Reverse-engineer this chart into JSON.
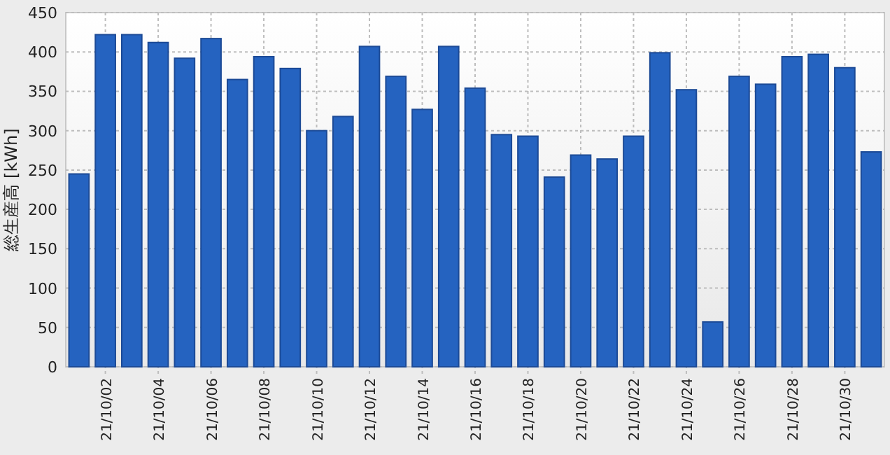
{
  "chart_data": {
    "type": "bar",
    "ylabel": "総生産高 [kWh]",
    "categories": [
      null,
      "21/10/02",
      null,
      "21/10/04",
      null,
      "21/10/06",
      null,
      "21/10/08",
      null,
      "21/10/10",
      null,
      "21/10/12",
      null,
      "21/10/14",
      null,
      "21/10/16",
      null,
      "21/10/18",
      null,
      "21/10/20",
      null,
      "21/10/22",
      null,
      "21/10/24",
      null,
      "21/10/26",
      null,
      "21/10/28",
      null,
      "21/10/30",
      null
    ],
    "values": [
      245,
      422,
      422,
      412,
      392,
      417,
      365,
      394,
      379,
      300,
      318,
      407,
      369,
      327,
      407,
      354,
      295,
      293,
      241,
      269,
      264,
      293,
      399,
      352,
      57,
      369,
      359,
      394,
      397,
      380,
      273
    ],
    "color": "#2563c0",
    "ylim": [
      0,
      450
    ],
    "yticks": [
      0,
      50,
      100,
      150,
      200,
      250,
      300,
      350,
      400,
      450
    ],
    "grid": true
  }
}
